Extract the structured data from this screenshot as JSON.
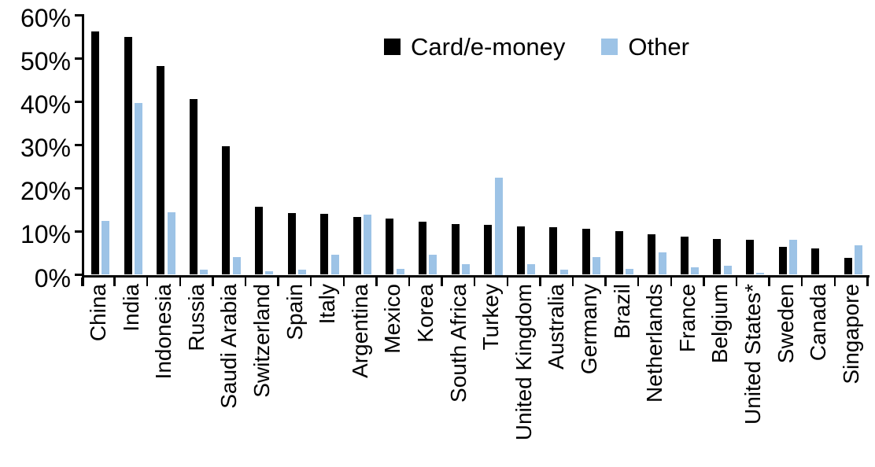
{
  "chart_data": {
    "type": "bar",
    "title": "",
    "xlabel": "",
    "ylabel": "",
    "ylim": [
      0,
      60
    ],
    "yticks": [
      0,
      10,
      20,
      30,
      40,
      50,
      60
    ],
    "ytick_labels": [
      "0%",
      "10%",
      "20%",
      "30%",
      "40%",
      "50%",
      "60%"
    ],
    "grid": false,
    "legend_position": "top-center",
    "categories": [
      "China",
      "India",
      "Indonesia",
      "Russia",
      "Saudi Arabia",
      "Switzerland",
      "Spain",
      "Italy",
      "Argentina",
      "Mexico",
      "Korea",
      "South Africa",
      "Turkey",
      "United Kingdom",
      "Australia",
      "Germany",
      "Brazil",
      "Netherlands",
      "France",
      "Belgium",
      "United States*",
      "Sweden",
      "Canada",
      "Singapore"
    ],
    "series": [
      {
        "name": "Card/e-money",
        "color": "#000000",
        "values": [
          56.2,
          55.0,
          48.2,
          40.5,
          29.7,
          15.7,
          14.2,
          14.1,
          13.4,
          12.9,
          12.3,
          11.8,
          11.6,
          11.1,
          11.0,
          10.7,
          10.1,
          9.3,
          8.8,
          8.3,
          8.0,
          6.5,
          6.0,
          3.9
        ]
      },
      {
        "name": "Other",
        "color": "#9DC3E6",
        "values": [
          12.4,
          39.6,
          14.5,
          1.1,
          4.0,
          0.9,
          1.2,
          4.7,
          13.9,
          1.4,
          4.6,
          2.4,
          22.5,
          2.4,
          1.1,
          4.0,
          1.4,
          5.1,
          1.7,
          2.1,
          0.4,
          8.1,
          0,
          6.8
        ]
      }
    ]
  }
}
